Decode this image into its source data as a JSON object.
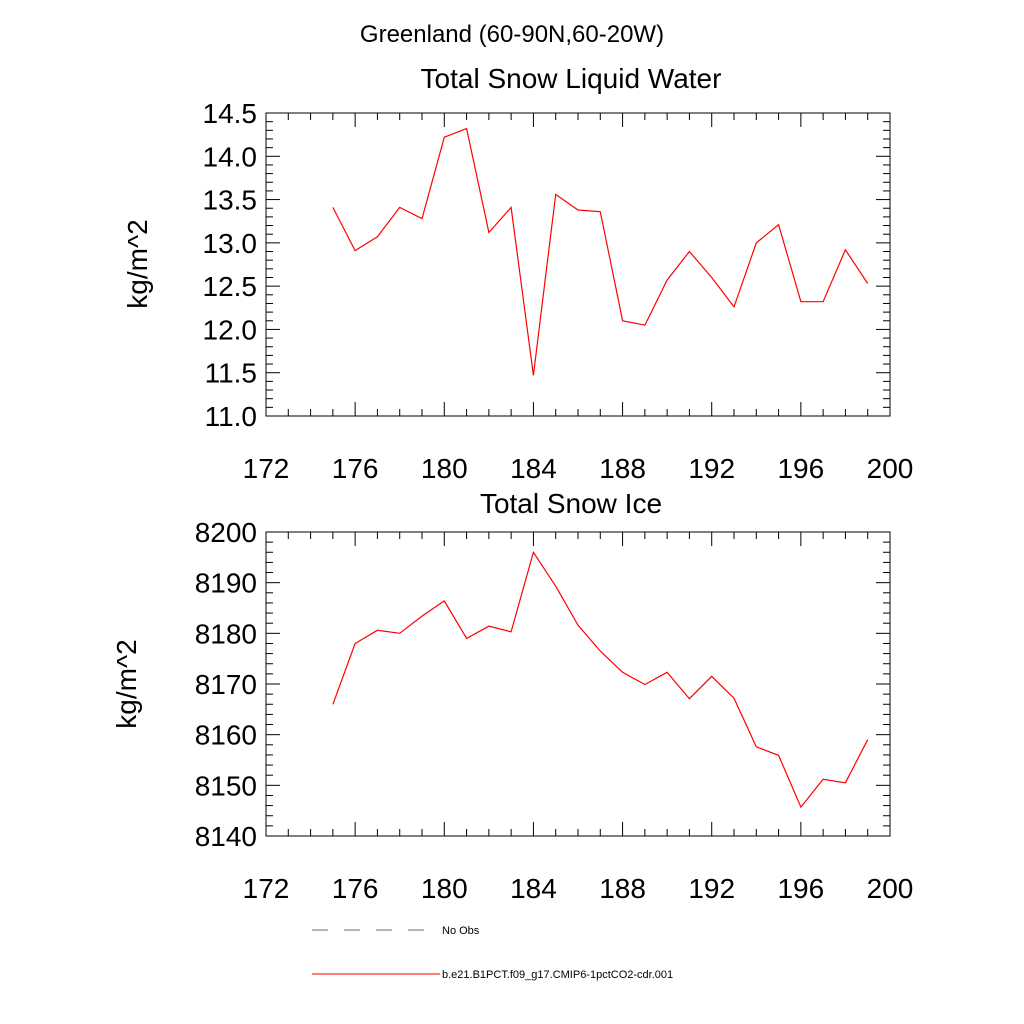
{
  "suptitle": "Greenland (60-90N,60-20W)",
  "chart_data": [
    {
      "type": "line",
      "title": "Total Snow Liquid Water",
      "xlabel": "",
      "ylabel": "kg/m^2",
      "xlim": [
        172,
        200
      ],
      "ylim": [
        11.0,
        14.5
      ],
      "xticks": [
        "172",
        "176",
        "180",
        "184",
        "188",
        "192",
        "196",
        "200"
      ],
      "yticks": [
        "11.0",
        "11.5",
        "12.0",
        "12.5",
        "13.0",
        "13.5",
        "14.0",
        "14.5"
      ],
      "series": [
        {
          "name": "b.e21.B1PCT.f09_g17.CMIP6-1pctCO2-cdr.001",
          "color": "#ff0000",
          "x": [
            175,
            176,
            177,
            178,
            179,
            180,
            181,
            182,
            183,
            184,
            185,
            186,
            187,
            188,
            189,
            190,
            191,
            192,
            193,
            194,
            195,
            196,
            197,
            198,
            199
          ],
          "y": [
            13.41,
            12.91,
            13.07,
            13.41,
            13.28,
            14.22,
            14.32,
            13.12,
            13.41,
            11.47,
            13.56,
            13.38,
            13.36,
            12.1,
            12.05,
            12.57,
            12.9,
            12.6,
            12.26,
            13.0,
            13.21,
            12.32,
            12.32,
            12.92,
            12.53
          ]
        }
      ]
    },
    {
      "type": "line",
      "title": "Total Snow Ice",
      "xlabel": "",
      "ylabel": "kg/m^2",
      "xlim": [
        172,
        200
      ],
      "ylim": [
        8140,
        8200
      ],
      "xticks": [
        "172",
        "176",
        "180",
        "184",
        "188",
        "192",
        "196",
        "200"
      ],
      "yticks": [
        "8140",
        "8150",
        "8160",
        "8170",
        "8180",
        "8190",
        "8200"
      ],
      "series": [
        {
          "name": "b.e21.B1PCT.f09_g17.CMIP6-1pctCO2-cdr.001",
          "color": "#ff0000",
          "x": [
            175,
            176,
            177,
            178,
            179,
            180,
            181,
            182,
            183,
            184,
            185,
            186,
            187,
            188,
            189,
            190,
            191,
            192,
            193,
            194,
            195,
            196,
            197,
            198,
            199
          ],
          "y": [
            8166,
            8178,
            8180.6,
            8180,
            8183.4,
            8186.4,
            8179,
            8181.4,
            8180.3,
            8196,
            8189.3,
            8181.6,
            8176.5,
            8172.3,
            8169.9,
            8172.3,
            8167.1,
            8171.5,
            8167.2,
            8157.6,
            8155.9,
            8145.7,
            8151.2,
            8150.5,
            8159
          ]
        }
      ]
    }
  ],
  "legend": [
    {
      "label": "No Obs",
      "style": "dashed",
      "color": "#6a6a8a"
    },
    {
      "label": "b.e21.B1PCT.f09_g17.CMIP6-1pctCO2-cdr.001",
      "style": "solid",
      "color": "#ff0000"
    }
  ]
}
